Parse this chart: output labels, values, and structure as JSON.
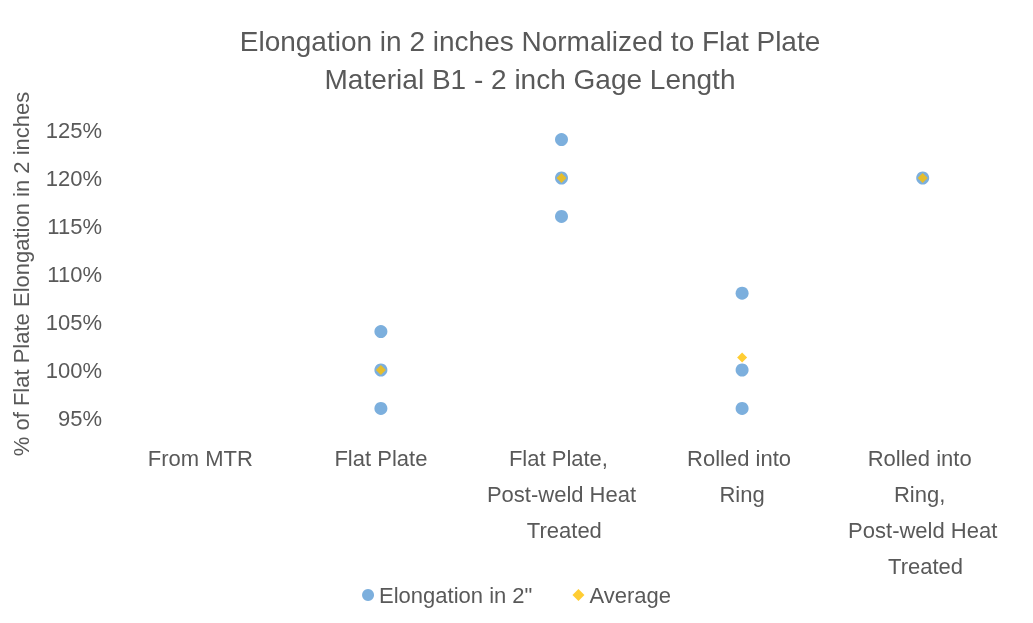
{
  "chart_data": {
    "type": "scatter",
    "title": "Elongation in 2 inches Normalized to Flat Plate",
    "subtitle": "Material B1 - 2 inch Gage Length",
    "ylabel": "% of Flat Plate Elongation in 2 inches",
    "categories": [
      "From MTR",
      "Flat Plate",
      "Flat Plate, Post-weld Heat Treated",
      "Rolled into Ring",
      "Rolled into Ring, Post-weld Heat Treated"
    ],
    "series": [
      {
        "name": "Elongation in 2\"",
        "color": "#5b9bd5",
        "marker": "circle",
        "x": [
          "Flat Plate",
          "Flat Plate",
          "Flat Plate",
          "Flat Plate, Post-weld Heat Treated",
          "Flat Plate, Post-weld Heat Treated",
          "Flat Plate, Post-weld Heat Treated",
          "Rolled into Ring",
          "Rolled into Ring",
          "Rolled into Ring",
          "Rolled into Ring, Post-weld Heat Treated"
        ],
        "values": [
          104,
          100,
          96,
          124,
          120,
          116,
          108,
          100,
          96,
          120
        ]
      },
      {
        "name": "Average",
        "color": "#ffc000",
        "marker": "diamond",
        "x": [
          "Flat Plate",
          "Flat Plate, Post-weld Heat Treated",
          "Rolled into Ring",
          "Rolled into Ring, Post-weld Heat Treated"
        ],
        "values": [
          100,
          120,
          101.3,
          120
        ]
      }
    ],
    "ylim": [
      95,
      125
    ],
    "yticks": [
      {
        "value": 95,
        "label": "95%"
      },
      {
        "value": 100,
        "label": "100%"
      },
      {
        "value": 105,
        "label": "105%"
      },
      {
        "value": 110,
        "label": "110%"
      },
      {
        "value": 115,
        "label": "115%"
      },
      {
        "value": 120,
        "label": "120%"
      },
      {
        "value": 125,
        "label": "125%"
      }
    ],
    "grid": false,
    "legend": "bottom"
  }
}
